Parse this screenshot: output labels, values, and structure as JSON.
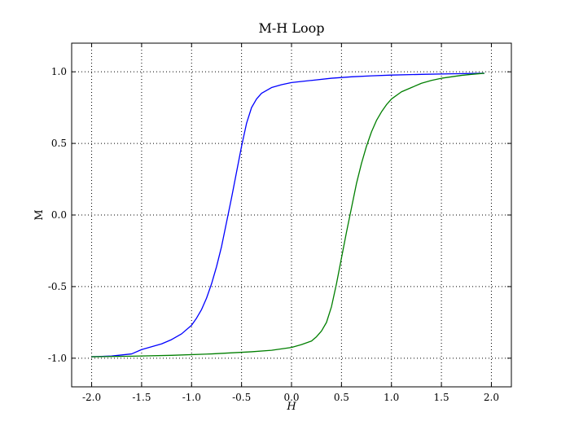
{
  "chart_data": {
    "type": "line",
    "title": "M-H Loop",
    "xlabel": "H",
    "ylabel": "M",
    "xlim": [
      -2.2,
      2.2
    ],
    "ylim": [
      -1.2,
      1.2
    ],
    "xticks": [
      -2.0,
      -1.5,
      -1.0,
      -0.5,
      0.0,
      0.5,
      1.0,
      1.5,
      2.0
    ],
    "xtick_labels": [
      "-2.0",
      "-1.5",
      "-1.0",
      "-0.5",
      "0.0",
      "0.5",
      "1.0",
      "1.5",
      "2.0"
    ],
    "yticks": [
      -1.0,
      -0.5,
      0.0,
      0.5,
      1.0
    ],
    "ytick_labels": [
      "-1.0",
      "-0.5",
      "0.0",
      "0.5",
      "1.0"
    ],
    "grid": true,
    "series": [
      {
        "color": "#0000ff",
        "x": [
          -2.0,
          -1.8,
          -1.6,
          -1.5,
          -1.4,
          -1.3,
          -1.2,
          -1.1,
          -1.0,
          -0.95,
          -0.9,
          -0.85,
          -0.8,
          -0.75,
          -0.7,
          -0.65,
          -0.6,
          -0.55,
          -0.5,
          -0.45,
          -0.4,
          -0.35,
          -0.3,
          -0.25,
          -0.2,
          -0.1,
          0.0,
          0.2,
          0.4,
          0.6,
          0.8,
          1.0,
          1.3,
          1.6,
          1.93
        ],
        "y": [
          -0.99,
          -0.985,
          -0.97,
          -0.94,
          -0.92,
          -0.9,
          -0.87,
          -0.83,
          -0.77,
          -0.72,
          -0.66,
          -0.58,
          -0.48,
          -0.36,
          -0.22,
          -0.05,
          0.12,
          0.3,
          0.48,
          0.64,
          0.75,
          0.81,
          0.85,
          0.87,
          0.89,
          0.91,
          0.925,
          0.94,
          0.955,
          0.965,
          0.972,
          0.977,
          0.982,
          0.986,
          0.99
        ]
      },
      {
        "color": "#007f00",
        "x": [
          -2.0,
          -1.6,
          -1.2,
          -0.8,
          -0.4,
          -0.2,
          0.0,
          0.1,
          0.2,
          0.25,
          0.3,
          0.35,
          0.4,
          0.45,
          0.5,
          0.55,
          0.6,
          0.65,
          0.7,
          0.75,
          0.8,
          0.85,
          0.9,
          0.95,
          1.0,
          1.1,
          1.2,
          1.3,
          1.4,
          1.5,
          1.6,
          1.7,
          1.8,
          1.93
        ],
        "y": [
          -0.99,
          -0.986,
          -0.98,
          -0.97,
          -0.955,
          -0.945,
          -0.925,
          -0.905,
          -0.88,
          -0.85,
          -0.81,
          -0.75,
          -0.64,
          -0.48,
          -0.3,
          -0.12,
          0.05,
          0.22,
          0.36,
          0.48,
          0.58,
          0.66,
          0.72,
          0.77,
          0.81,
          0.86,
          0.89,
          0.92,
          0.94,
          0.955,
          0.965,
          0.975,
          0.982,
          0.99
        ]
      }
    ]
  }
}
